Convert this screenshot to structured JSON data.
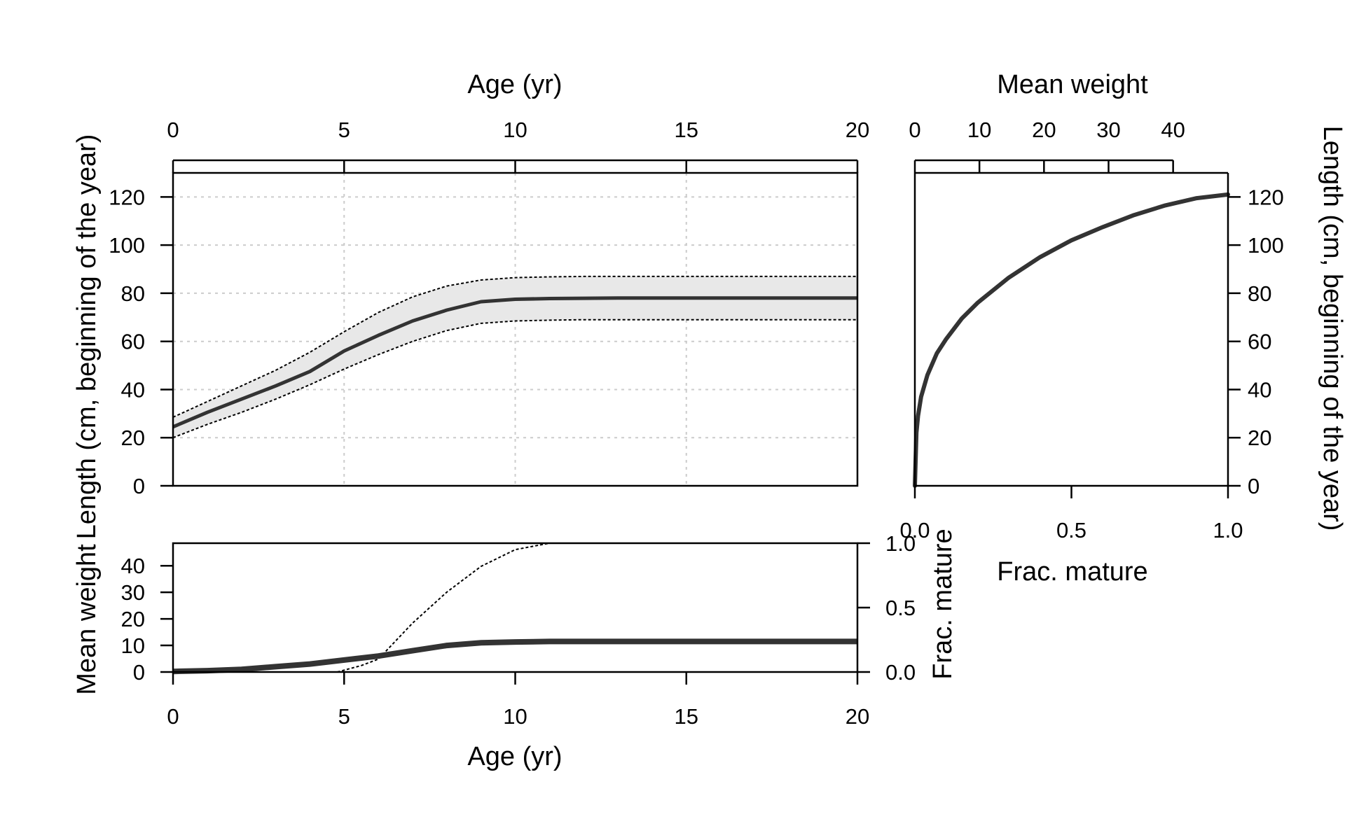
{
  "chart_data": [
    {
      "type": "line",
      "panel": "length-at-age",
      "xlabel": "Age (yr)",
      "ylabel": "Length (cm, beginning of the year)",
      "xlim": [
        0,
        20
      ],
      "ylim": [
        0,
        130
      ],
      "xticks": [
        0,
        5,
        10,
        15,
        20
      ],
      "yticks": [
        0,
        20,
        40,
        60,
        80,
        100,
        120
      ],
      "grid": true,
      "series": [
        {
          "role": "mean",
          "color": "#333333",
          "x": [
            0,
            1,
            2,
            3,
            4,
            5,
            6,
            7,
            8,
            9,
            10,
            11,
            12,
            13,
            14,
            15,
            16,
            17,
            18,
            19,
            20
          ],
          "y": [
            24.5,
            30.5,
            36,
            41.5,
            47.5,
            56,
            62.5,
            68.5,
            73,
            76.5,
            77.5,
            77.8,
            77.9,
            78,
            78,
            78,
            78,
            78,
            78,
            78,
            78
          ]
        },
        {
          "role": "upper",
          "color": "#000000",
          "x": [
            0,
            1,
            2,
            3,
            4,
            5,
            6,
            7,
            8,
            9,
            10,
            11,
            12,
            13,
            14,
            15,
            16,
            17,
            18,
            19,
            20
          ],
          "y": [
            28.5,
            35,
            41.5,
            48,
            55.5,
            64,
            72,
            78.5,
            83,
            85.5,
            86.5,
            86.8,
            87,
            87,
            87,
            87,
            87,
            87,
            87,
            87,
            87
          ]
        },
        {
          "role": "lower",
          "color": "#000000",
          "x": [
            0,
            1,
            2,
            3,
            4,
            5,
            6,
            7,
            8,
            9,
            10,
            11,
            12,
            13,
            14,
            15,
            16,
            17,
            18,
            19,
            20
          ],
          "y": [
            20,
            25.5,
            30.5,
            36,
            42,
            48.5,
            54.5,
            60,
            64.5,
            67.5,
            68.5,
            68.8,
            69,
            69,
            69,
            69,
            69,
            69,
            69,
            69,
            69
          ]
        }
      ],
      "band_color": "#e8e8e8"
    },
    {
      "type": "line",
      "panel": "length-vs-maturity",
      "xlabel": "Frac. mature",
      "x2label": "Mean weight",
      "ylabel": "Length (cm, beginning of the year)",
      "xlim": [
        0,
        1
      ],
      "x2lim": [
        0,
        48.5
      ],
      "ylim": [
        0,
        130
      ],
      "xticks": [
        "0.0",
        "0.5",
        "1.0"
      ],
      "x2ticks": [
        0,
        10,
        20,
        30,
        40
      ],
      "yticks": [
        0,
        20,
        40,
        60,
        80,
        100,
        120
      ],
      "series": [
        {
          "role": "maturity-curve",
          "color": "#333333",
          "x": [
            0,
            0.005,
            0.01,
            0.02,
            0.04,
            0.07,
            0.1,
            0.15,
            0.2,
            0.3,
            0.4,
            0.5,
            0.6,
            0.7,
            0.8,
            0.9,
            1.0
          ],
          "y": [
            0,
            22,
            29,
            37,
            46,
            55,
            61,
            69.5,
            76,
            86.5,
            95,
            102,
            107.5,
            112.5,
            116.5,
            119.5,
            121
          ]
        }
      ]
    },
    {
      "type": "line",
      "panel": "weight-maturity-at-age",
      "xlabel": "Age (yr)",
      "ylabel": "Mean weight",
      "y2label": "Frac. mature",
      "xlim": [
        0,
        20
      ],
      "ylim": [
        0,
        48.5
      ],
      "y2lim": [
        0,
        1
      ],
      "xticks": [
        0,
        5,
        10,
        15,
        20
      ],
      "yticks": [
        0,
        10,
        20,
        30,
        40
      ],
      "y2ticks": [
        "0.0",
        "0.5",
        "1.0"
      ],
      "series": [
        {
          "role": "mean-weight",
          "color": "#333333",
          "x": [
            0,
            1,
            2,
            3,
            4,
            5,
            6,
            7,
            8,
            9,
            10,
            11,
            12,
            13,
            14,
            15,
            16,
            17,
            18,
            19,
            20
          ],
          "y": [
            0.2,
            0.5,
            1,
            2,
            3,
            4.5,
            6,
            8,
            10,
            11,
            11.3,
            11.5,
            11.5,
            11.5,
            11.5,
            11.5,
            11.5,
            11.5,
            11.5,
            11.5,
            11.5
          ]
        },
        {
          "role": "frac-mature",
          "color": "#000000",
          "x": [
            4.8,
            5.5,
            6,
            7,
            8,
            9,
            10,
            11
          ],
          "y": [
            0.0,
            0.05,
            0.1,
            0.38,
            0.62,
            0.82,
            0.95,
            1.0
          ]
        }
      ]
    }
  ]
}
